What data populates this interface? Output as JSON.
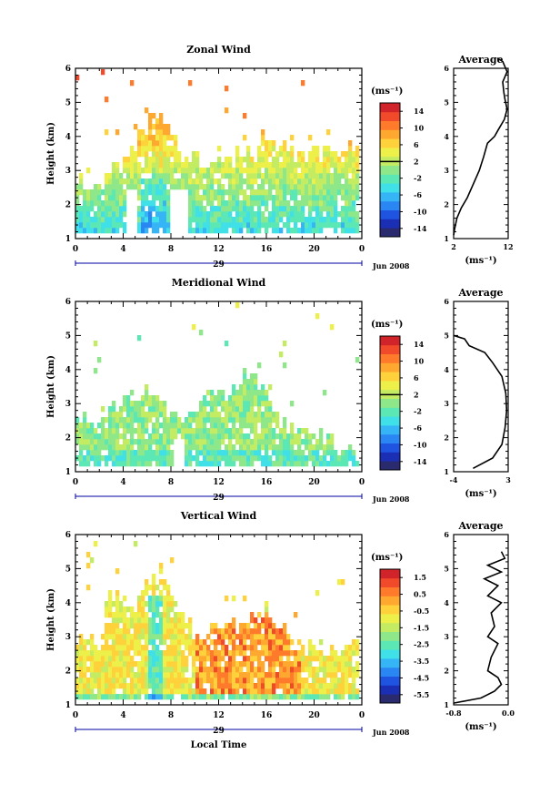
{
  "figure": {
    "xlabel": "Local Time",
    "date_label": "Jun 2008",
    "day_label": "29",
    "colors": {
      "jet": [
        "#2a2a6e",
        "#1b2fb5",
        "#1f54e0",
        "#2a86f2",
        "#35b5f5",
        "#3fe0e8",
        "#5ce8b5",
        "#8ee88a",
        "#c4ec63",
        "#eef04a",
        "#ffd23c",
        "#ffa830",
        "#ff7a2a",
        "#f04a2a",
        "#d0232a"
      ],
      "line": "#000000",
      "axis": "#000000",
      "range_bar": "#0000a0"
    }
  },
  "chart_data": [
    {
      "type": "heatmap",
      "name": "zonal",
      "title": "Zonal Wind",
      "ylabel": "Height (km)",
      "xlim": [
        0,
        24
      ],
      "ylim": [
        1,
        6
      ],
      "xticks": [
        "0",
        "4",
        "8",
        "12",
        "16",
        "20",
        "0"
      ],
      "yticks": [
        "1",
        "2",
        "3",
        "4",
        "5",
        "6"
      ],
      "colorbar": {
        "unit": "(ms⁻¹)",
        "ticks": [
          "14",
          "10",
          "6",
          "2",
          "-2",
          "-6",
          "-10",
          "-14"
        ],
        "range": [
          -16,
          16
        ],
        "zero_line": 2
      },
      "profile": {
        "title": "Average",
        "xlabel": "(ms⁻¹)",
        "xlim": [
          2,
          12
        ],
        "xticks": [
          "2",
          "12"
        ],
        "ylim": [
          1,
          6
        ],
        "yticks": [
          "1",
          "2",
          "3",
          "4",
          "5",
          "6"
        ],
        "points": [
          [
            2.0,
            1.1
          ],
          [
            2.2,
            1.3
          ],
          [
            2.6,
            1.6
          ],
          [
            3.4,
            1.9
          ],
          [
            4.5,
            2.2
          ],
          [
            5.6,
            2.6
          ],
          [
            6.7,
            3.0
          ],
          [
            7.5,
            3.4
          ],
          [
            8.2,
            3.8
          ],
          [
            9.5,
            4.0
          ],
          [
            10.2,
            4.2
          ],
          [
            11.3,
            4.5
          ],
          [
            11.8,
            4.8
          ],
          [
            11.4,
            5.1
          ],
          [
            11.2,
            5.3
          ],
          [
            11.0,
            5.6
          ],
          [
            11.8,
            5.9
          ],
          [
            11.0,
            6.2
          ],
          [
            10.0,
            6.3
          ]
        ]
      }
    },
    {
      "type": "heatmap",
      "name": "meridional",
      "title": "Meridional Wind",
      "ylabel": "Height (km)",
      "xlim": [
        0,
        24
      ],
      "ylim": [
        1,
        6
      ],
      "xticks": [
        "0",
        "4",
        "8",
        "12",
        "16",
        "20",
        "0"
      ],
      "yticks": [
        "1",
        "2",
        "3",
        "4",
        "5",
        "6"
      ],
      "colorbar": {
        "unit": "(ms⁻¹)",
        "ticks": [
          "14",
          "10",
          "6",
          "2",
          "-2",
          "-6",
          "-10",
          "-14"
        ],
        "range": [
          -16,
          16
        ],
        "zero_line": 2
      },
      "profile": {
        "title": "Average",
        "xlabel": "(ms⁻¹)",
        "xlim": [
          -4,
          3
        ],
        "xticks": [
          "-4",
          "3"
        ],
        "ylim": [
          1,
          6
        ],
        "yticks": [
          "1",
          "2",
          "3",
          "4",
          "5",
          "6"
        ],
        "points": [
          [
            -1.5,
            1.1
          ],
          [
            1.0,
            1.4
          ],
          [
            2.2,
            1.8
          ],
          [
            2.6,
            2.3
          ],
          [
            2.8,
            2.8
          ],
          [
            2.7,
            3.3
          ],
          [
            2.2,
            3.8
          ],
          [
            1.0,
            4.2
          ],
          [
            0.0,
            4.5
          ],
          [
            -2.0,
            4.7
          ],
          [
            -2.6,
            4.9
          ],
          [
            -4.0,
            5.0
          ]
        ]
      }
    },
    {
      "type": "heatmap",
      "name": "vertical",
      "title": "Vertical Wind",
      "ylabel": "Height (km)",
      "xlim": [
        0,
        24
      ],
      "ylim": [
        1,
        6
      ],
      "xticks": [
        "0",
        "4",
        "8",
        "12",
        "16",
        "20",
        "0"
      ],
      "yticks": [
        "1",
        "2",
        "3",
        "4",
        "5",
        "6"
      ],
      "colorbar": {
        "unit": "(ms⁻¹)",
        "ticks": [
          "1.5",
          "0.5",
          "-0.5",
          "-1.5",
          "-2.5",
          "-3.5",
          "-4.5",
          "-5.5"
        ],
        "range": [
          -6,
          2
        ]
      },
      "profile": {
        "title": "Average",
        "xlabel": "(ms⁻¹)",
        "xlim": [
          -0.8,
          0.0
        ],
        "xticks": [
          "-0.8",
          "0.0"
        ],
        "ylim": [
          1,
          6
        ],
        "yticks": [
          "1",
          "2",
          "3",
          "4",
          "5",
          "6"
        ],
        "points": [
          [
            -0.8,
            1.05
          ],
          [
            -0.4,
            1.2
          ],
          [
            -0.2,
            1.4
          ],
          [
            -0.1,
            1.6
          ],
          [
            -0.15,
            1.8
          ],
          [
            -0.3,
            2.0
          ],
          [
            -0.25,
            2.4
          ],
          [
            -0.15,
            2.8
          ],
          [
            -0.3,
            3.0
          ],
          [
            -0.2,
            3.3
          ],
          [
            -0.25,
            3.7
          ],
          [
            -0.1,
            4.0
          ],
          [
            -0.3,
            4.2
          ],
          [
            -0.15,
            4.5
          ],
          [
            -0.35,
            4.7
          ],
          [
            -0.1,
            4.9
          ],
          [
            -0.3,
            5.1
          ],
          [
            -0.05,
            5.3
          ],
          [
            -0.1,
            5.5
          ]
        ]
      }
    }
  ]
}
